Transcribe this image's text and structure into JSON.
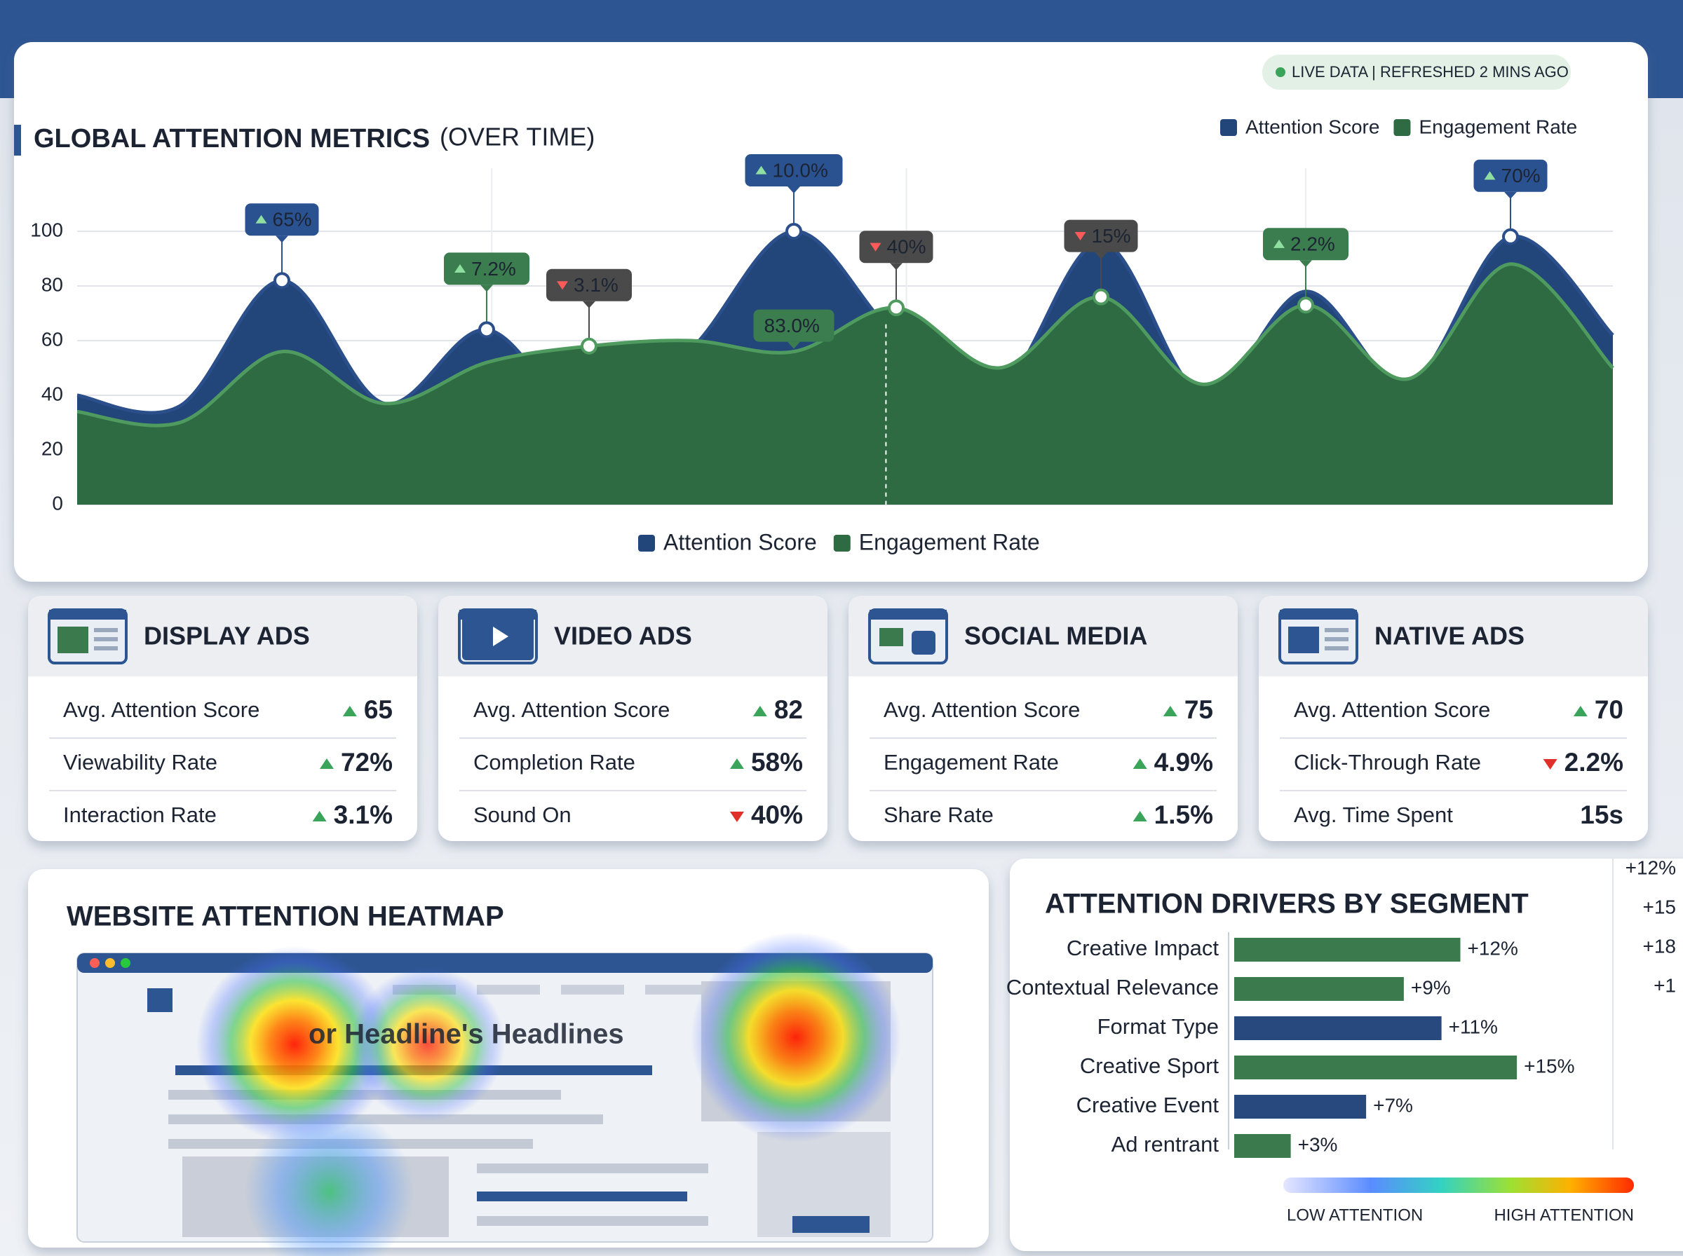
{
  "status": "LIVE DATA | REFRESHED 2 MINS AGO",
  "main_chart": {
    "type": "area",
    "title": "GLOBAL ATTENTION METRICS",
    "subtitle": "(OVER TIME)",
    "ylim": [
      0,
      100
    ],
    "yticks": [
      0,
      20,
      40,
      60,
      80,
      100
    ],
    "grid": true,
    "series": [
      {
        "name": "Attention Score",
        "color": "#22457a",
        "values": [
          40,
          36,
          82,
          37,
          64,
          30,
          57,
          100,
          62,
          42,
          96,
          40,
          78,
          44,
          98,
          62
        ]
      },
      {
        "name": "Engagement Rate",
        "color": "#2e6b43",
        "values": [
          34,
          30,
          56,
          37,
          52,
          58,
          60,
          56,
          72,
          50,
          76,
          44,
          73,
          46,
          88,
          50
        ]
      }
    ],
    "annotations": [
      {
        "text": "65%",
        "trend": "up",
        "color": "#2a5291"
      },
      {
        "text": "7.2%",
        "trend": "up",
        "color": "#3b7d4f"
      },
      {
        "text": "3.1%",
        "trend": "down",
        "color": "#4a4a4a"
      },
      {
        "text": "10.0%",
        "trend": "up",
        "color": "#2a5291"
      },
      {
        "text": "83.0%",
        "color": "#3b7d4f"
      },
      {
        "text": "40%",
        "trend": "down",
        "color": "#4a4a4a"
      },
      {
        "text": "15%",
        "trend": "down",
        "color": "#4a4a4a"
      },
      {
        "text": "2.2%",
        "trend": "up",
        "color": "#3b7d4f"
      },
      {
        "text": "70%",
        "trend": "up",
        "color": "#2a5291"
      }
    ]
  },
  "cards": [
    {
      "title": "DISPLAY ADS",
      "rows": [
        {
          "label": "Avg. Attention Score",
          "value": "65",
          "trend": "up"
        },
        {
          "label": "Viewability Rate",
          "value": "72%",
          "trend": "up"
        },
        {
          "label": "Interaction Rate",
          "value": "3.1%",
          "trend": "up"
        }
      ]
    },
    {
      "title": "VIDEO ADS",
      "rows": [
        {
          "label": "Avg. Attention Score",
          "value": "82",
          "trend": "up"
        },
        {
          "label": "Completion Rate",
          "value": "58%",
          "trend": "up"
        },
        {
          "label": "Sound On",
          "value": "40%",
          "trend": "down"
        }
      ]
    },
    {
      "title": "SOCIAL MEDIA",
      "rows": [
        {
          "label": "Avg. Attention Score",
          "value": "75",
          "trend": "up"
        },
        {
          "label": "Engagement Rate",
          "value": "4.9%",
          "trend": "up"
        },
        {
          "label": "Share Rate",
          "value": "1.5%",
          "trend": "up"
        }
      ]
    },
    {
      "title": "NATIVE ADS",
      "rows": [
        {
          "label": "Avg. Attention Score",
          "value": "70",
          "trend": "up"
        },
        {
          "label": "Click-Through Rate",
          "value": "2.2%",
          "trend": "down"
        },
        {
          "label": "Avg. Time Spent",
          "value": "15s"
        }
      ]
    }
  ],
  "heatmap": {
    "title": "WEBSITE ATTENTION HEATMAP",
    "headline": "or Headline's Headlines"
  },
  "drivers": {
    "type": "bar",
    "title": "ATTENTION DRIVERS BY SEGMENT",
    "categories": [
      "Creative Impact",
      "Contextual Relevance",
      "Format Type",
      "Creative Sport",
      "Creative Event",
      "Ad rentrant"
    ],
    "values": [
      12,
      9,
      11,
      15,
      7,
      3
    ],
    "value_labels": [
      "+12%",
      "+9%",
      "+11%",
      "+15%",
      "+7%",
      "+3%"
    ],
    "colors": [
      "#3a7a4c",
      "#3a7a4c",
      "#27497d",
      "#3a7a4c",
      "#27497d",
      "#3a7a4c"
    ],
    "xlim": [
      0,
      16
    ],
    "side_labels": [
      "+12%",
      "+15",
      "+18",
      "+1"
    ],
    "legend": {
      "low": "LOW ATTENTION",
      "high": "HIGH ATTENTION"
    }
  }
}
